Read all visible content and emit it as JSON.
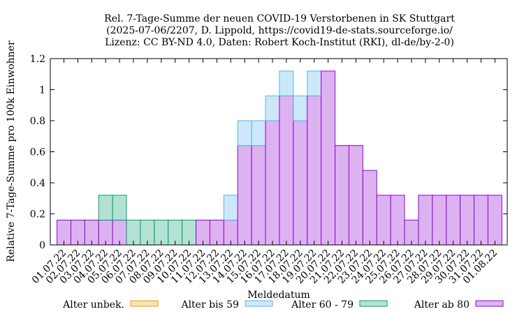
{
  "chart_data": {
    "type": "bar",
    "stacked": true,
    "title": [
      "Rel. 7-Tage-Summe der neuen COVID-19 Verstorbenen in SK Stuttgart",
      "(2025-07-06/2207, D. Lippold, https://covid19-de-stats.sourceforge.io/",
      "Lizenz: CC BY-ND 4.0, Daten: Robert Koch-Institut (RKI), dl-de/by-2-0)"
    ],
    "xlabel": "Meldedatum",
    "ylabel": "Relative 7-Tage-Summe pro 100k Einwohner",
    "ylim": [
      0,
      1.2
    ],
    "yticks": [
      "0",
      "0.2",
      "0.4",
      "0.6",
      "0.8",
      "1",
      "1.2"
    ],
    "grid": false,
    "legend_position": "bottom",
    "categories": [
      "01.07.22",
      "02.07.22",
      "03.07.22",
      "04.07.22",
      "05.07.22",
      "06.07.22",
      "07.07.22",
      "08.07.22",
      "09.07.22",
      "10.07.22",
      "11.07.22",
      "12.07.22",
      "13.07.22",
      "14.07.22",
      "15.07.22",
      "16.07.22",
      "17.07.22",
      "18.07.22",
      "19.07.22",
      "20.07.22",
      "21.07.22",
      "22.07.22",
      "23.07.22",
      "24.07.22",
      "25.07.22",
      "26.07.22",
      "27.07.22",
      "28.07.22",
      "29.07.22",
      "30.07.22",
      "31.07.22",
      "01.08.22"
    ],
    "series": [
      {
        "name": "Alter ab 80",
        "color": "#9400d3",
        "fill": "#dcb3f0",
        "values": [
          0.16,
          0.16,
          0.16,
          0.16,
          0.16,
          0,
          0,
          0,
          0,
          0,
          0.16,
          0.16,
          0.16,
          0.64,
          0.64,
          0.8,
          0.96,
          0.8,
          0.96,
          1.12,
          0.64,
          0.64,
          0.48,
          0.32,
          0.32,
          0.16,
          0.32,
          0.32,
          0.32,
          0.32,
          0.32,
          0.32
        ]
      },
      {
        "name": "Alter 60 - 79",
        "color": "#009e73",
        "fill": "#b3e2d5",
        "values": [
          0,
          0,
          0,
          0.16,
          0.16,
          0.16,
          0.16,
          0.16,
          0.16,
          0.16,
          0,
          0,
          0,
          0,
          0,
          0,
          0,
          0,
          0,
          0,
          0,
          0,
          0,
          0,
          0,
          0,
          0,
          0,
          0,
          0,
          0,
          0
        ]
      },
      {
        "name": "Alter bis 59",
        "color": "#56b4e9",
        "fill": "#cce8f8",
        "values": [
          0,
          0,
          0,
          0,
          0,
          0,
          0,
          0,
          0,
          0,
          0,
          0,
          0.16,
          0.16,
          0.16,
          0.16,
          0.16,
          0.16,
          0.16,
          0,
          0,
          0,
          0,
          0,
          0,
          0,
          0,
          0,
          0,
          0,
          0,
          0
        ]
      },
      {
        "name": "Alter unbek.",
        "color": "#e69f00",
        "fill": "#fbe2b3",
        "values": [
          0,
          0,
          0,
          0,
          0,
          0,
          0,
          0,
          0,
          0,
          0,
          0,
          0,
          0,
          0,
          0,
          0,
          0,
          0,
          0,
          0,
          0,
          0,
          0,
          0,
          0,
          0,
          0,
          0,
          0,
          0,
          0
        ]
      }
    ],
    "legend_order": [
      "Alter unbek.",
      "Alter bis 59",
      "Alter 60 - 79",
      "Alter ab 80"
    ]
  }
}
